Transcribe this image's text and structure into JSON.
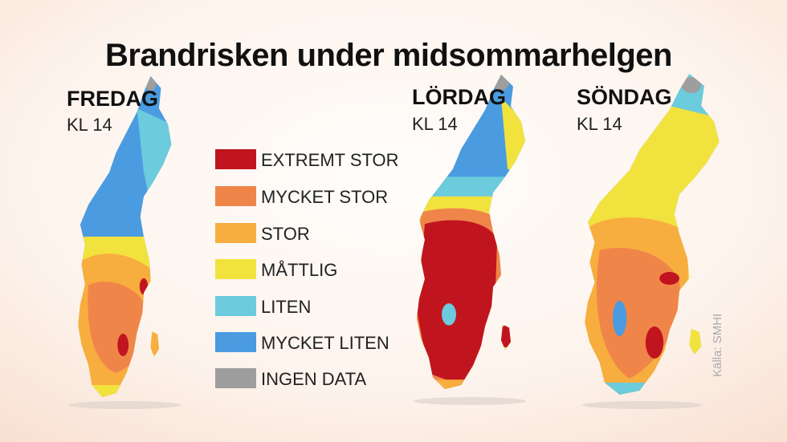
{
  "title": "Brandrisken under midsommarhelgen",
  "maps": [
    {
      "day": "FREDAG",
      "time": "KL 14"
    },
    {
      "day": "LÖRDAG",
      "time": "KL 14"
    },
    {
      "day": "SÖNDAG",
      "time": "KL 14"
    }
  ],
  "legend": [
    {
      "label": "EXTREMT STOR",
      "color": "#c0151f"
    },
    {
      "label": "MYCKET STOR",
      "color": "#f0854a"
    },
    {
      "label": "STOR",
      "color": "#f8ad3f"
    },
    {
      "label": "MÅTTLIG",
      "color": "#f2e23e"
    },
    {
      "label": "LITEN",
      "color": "#6ccbdc"
    },
    {
      "label": "MYCKET LITEN",
      "color": "#4a9be0"
    },
    {
      "label": "INGEN DATA",
      "color": "#9e9e9e"
    }
  ],
  "source": "Källa: SMHI"
}
